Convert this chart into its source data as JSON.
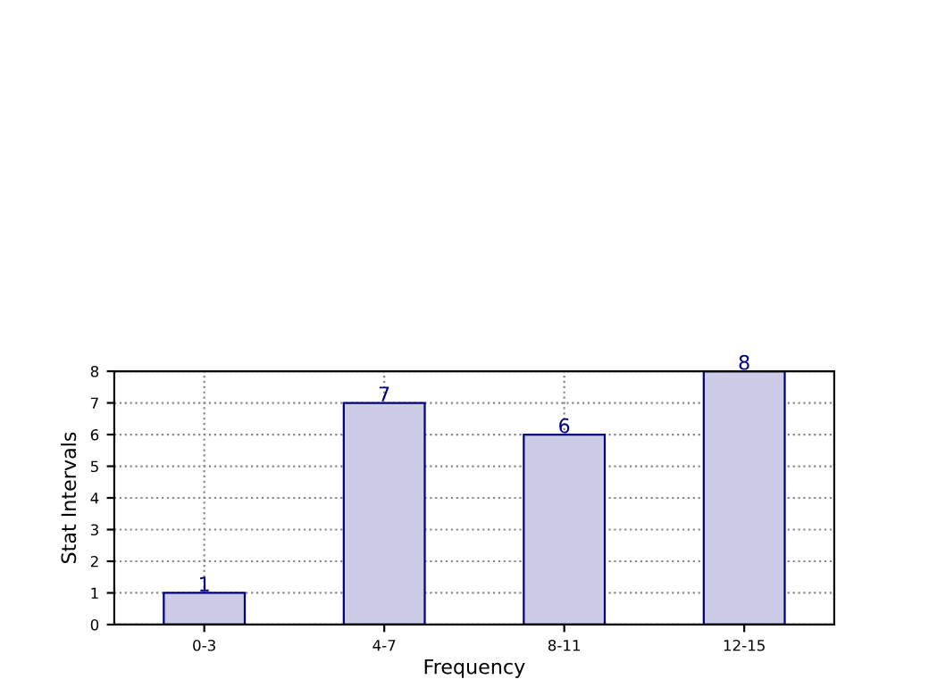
{
  "chart_data": {
    "type": "bar",
    "xlabel": "Frequency",
    "ylabel": "Stat Intervals",
    "categories": [
      "0-3",
      "4-7",
      "8-11",
      "12-15"
    ],
    "values": [
      1,
      7,
      6,
      8
    ],
    "color": "#cccce6",
    "ylim": [
      0,
      8
    ],
    "yticks": [
      0,
      1,
      2,
      3,
      4,
      5,
      6,
      7,
      8
    ],
    "grid": true,
    "data_labels": true
  }
}
